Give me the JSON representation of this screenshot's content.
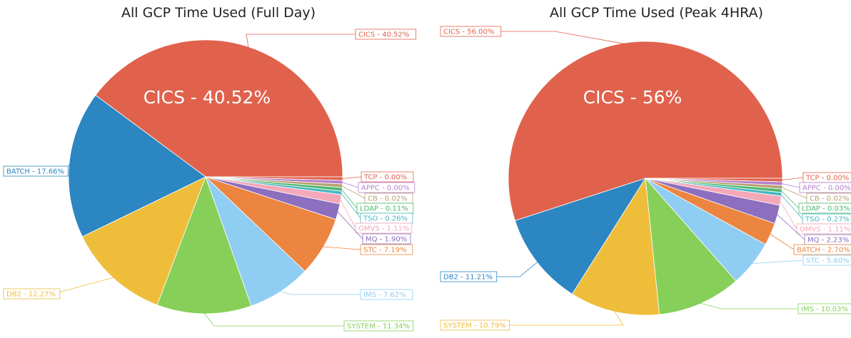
{
  "chart_data": [
    {
      "type": "pie",
      "title": "All GCP Time Used (Full Day)",
      "center_label": "CICS - 40.52%",
      "slices": [
        {
          "name": "CICS",
          "label": "CICS - 40.52%",
          "value": 40.52,
          "color": "#e0624c"
        },
        {
          "name": "TCP",
          "label": "TCP - 0.00%",
          "value": 0.0,
          "color": "#e0624c"
        },
        {
          "name": "APPC",
          "label": "APPC - 0.00%",
          "value": 0.0,
          "color": "#b57fce"
        },
        {
          "name": "CB",
          "label": "CB - 0.02%",
          "value": 0.02,
          "color": "#b8a070"
        },
        {
          "name": "LDAP",
          "label": "LDAP - 0.11%",
          "value": 0.11,
          "color": "#4cb870"
        },
        {
          "name": "TSO",
          "label": "TSO - 0.26%",
          "value": 0.26,
          "color": "#48b8c2"
        },
        {
          "name": "OMVS",
          "label": "OMVS - 1.11%",
          "value": 1.11,
          "color": "#f5a8b8"
        },
        {
          "name": "MQ",
          "label": "MQ - 1.90%",
          "value": 1.9,
          "color": "#8c6fbf"
        },
        {
          "name": "STC",
          "label": "STC - 7.19%",
          "value": 7.19,
          "color": "#ec8540"
        },
        {
          "name": "IMS",
          "label": "IMS - 7.62%",
          "value": 7.62,
          "color": "#90cdf2"
        },
        {
          "name": "SYSTEM",
          "label": "SYSTEM - 11.34%",
          "value": 11.34,
          "color": "#86cf58"
        },
        {
          "name": "DB2",
          "label": "DB2 - 12.27%",
          "value": 12.27,
          "color": "#eebd3a"
        },
        {
          "name": "BATCH",
          "label": "BATCH - 17.66%",
          "value": 17.66,
          "color": "#2b86c2"
        }
      ]
    },
    {
      "type": "pie",
      "title": "All GCP Time Used (Peak 4HRA)",
      "center_label": "CICS - 56%",
      "slices": [
        {
          "name": "CICS",
          "label": "CICS - 56.00%",
          "value": 56.0,
          "color": "#e0624c"
        },
        {
          "name": "TCP",
          "label": "TCP - 0.00%",
          "value": 0.0,
          "color": "#e0624c"
        },
        {
          "name": "APPC",
          "label": "APPC - 0.00%",
          "value": 0.0,
          "color": "#b57fce"
        },
        {
          "name": "CB",
          "label": "CB - 0.02%",
          "value": 0.02,
          "color": "#b8a070"
        },
        {
          "name": "LDAP",
          "label": "LDAP - 0.03%",
          "value": 0.03,
          "color": "#4cb870"
        },
        {
          "name": "TSO",
          "label": "TSO - 0.27%",
          "value": 0.27,
          "color": "#48b8c2"
        },
        {
          "name": "OMVS",
          "label": "OMVS - 1.11%",
          "value": 1.11,
          "color": "#f5a8b8"
        },
        {
          "name": "MQ",
          "label": "MQ - 2.23%",
          "value": 2.23,
          "color": "#8c6fbf"
        },
        {
          "name": "BATCH",
          "label": "BATCH - 2.70%",
          "value": 2.7,
          "color": "#ec8540"
        },
        {
          "name": "STC",
          "label": "STC - 5.60%",
          "value": 5.6,
          "color": "#90cdf2"
        },
        {
          "name": "IMS",
          "label": "IMS - 10.03%",
          "value": 10.03,
          "color": "#86cf58"
        },
        {
          "name": "SYSTEM",
          "label": "SYSTEM - 10.79%",
          "value": 10.79,
          "color": "#eebd3a"
        },
        {
          "name": "DB2",
          "label": "DB2 - 11.21%",
          "value": 11.21,
          "color": "#2b86c2"
        }
      ]
    }
  ]
}
